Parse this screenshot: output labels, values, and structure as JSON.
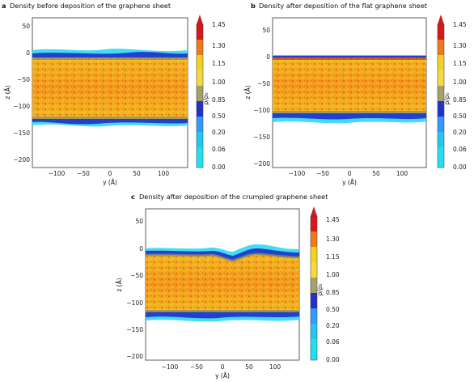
{
  "panels": [
    {
      "id": "a",
      "letter": "a",
      "title": "Density before deposition of the graphene sheet",
      "xlabel": "y (Å)",
      "ylabel": "z (Å)",
      "xticks": [
        "−100",
        "−50",
        "0",
        "50",
        "100"
      ],
      "yticks": [
        "50",
        "0",
        "−50",
        "−100",
        "−150",
        "−200"
      ],
      "colorbar_label": "ρ/ρ₀",
      "colorbar_ticks": [
        "1.45",
        "1.30",
        "1.15",
        "1.00",
        "0.85",
        "0.50",
        "0.20",
        "0.06",
        "0.00"
      ]
    },
    {
      "id": "b",
      "letter": "b",
      "title": "Density after deposition of the flat graphene sheet",
      "xlabel": "y (Å)",
      "ylabel": "z (Å)",
      "xticks": [
        "−100",
        "−50",
        "0",
        "50",
        "100"
      ],
      "yticks": [
        "50",
        "0",
        "−50",
        "−100",
        "−150",
        "−200"
      ],
      "colorbar_label": "ρ/ρ₀",
      "colorbar_ticks": [
        "1.45",
        "1.30",
        "1.15",
        "1.00",
        "0.85",
        "0.50",
        "0.20",
        "0.06",
        "0.00"
      ]
    },
    {
      "id": "c",
      "letter": "c",
      "title": "Density after deposition of the crumpled graphene sheet",
      "xlabel": "y (Å)",
      "ylabel": "z (Å)",
      "xticks": [
        "−100",
        "−50",
        "0",
        "50",
        "100"
      ],
      "yticks": [
        "50",
        "0",
        "−50",
        "−100",
        "−150",
        "−200"
      ],
      "colorbar_label": "ρ/ρ₀",
      "colorbar_ticks": [
        "1.45",
        "1.30",
        "1.15",
        "1.00",
        "0.85",
        "0.50",
        "0.20",
        "0.06",
        "0.00"
      ]
    }
  ],
  "colors": {
    "red": "#d7191c",
    "orange": "#f07a1a",
    "yellow": "#f4d21f",
    "olive": "#a6a06a",
    "blue": "#2233cc",
    "lightblue": "#3399ff",
    "cyan": "#22e0f0"
  }
}
